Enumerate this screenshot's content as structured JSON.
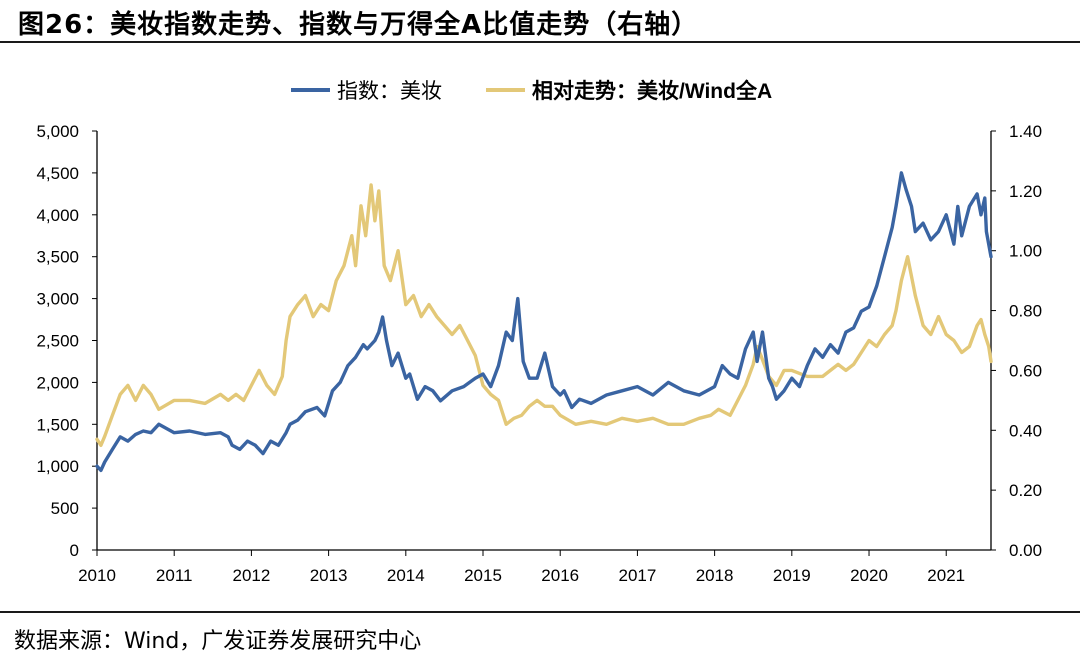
{
  "figure": {
    "title": "图26：美妆指数走势、指数与万得全A比值走势（右轴）",
    "source": "数据来源：Wind，广发证券发展研究中心"
  },
  "colors": {
    "index": "#3A64A2",
    "relative": "#E3C878",
    "axis": "#000000"
  },
  "chart_data": {
    "type": "line",
    "title": "",
    "legend_position": "top",
    "x_range": [
      2010.0,
      2021.58
    ],
    "x_ticks": [
      "2010",
      "2011",
      "2012",
      "2013",
      "2014",
      "2015",
      "2016",
      "2017",
      "2018",
      "2019",
      "2020",
      "2021"
    ],
    "y_left": {
      "range": [
        0,
        5000
      ],
      "ticks": [
        "0",
        "500",
        "1,000",
        "1,500",
        "2,000",
        "2,500",
        "3,000",
        "3,500",
        "4,000",
        "4,500",
        "5,000"
      ]
    },
    "y_right": {
      "range": [
        0,
        1.4
      ],
      "ticks": [
        "0.00",
        "0.20",
        "0.40",
        "0.60",
        "0.80",
        "1.00",
        "1.20",
        "1.40"
      ]
    },
    "series": [
      {
        "name": "指数：美妆",
        "axis": "left",
        "x": [
          2010.0,
          2010.05,
          2010.1,
          2010.2,
          2010.3,
          2010.4,
          2010.5,
          2010.6,
          2010.7,
          2010.8,
          2011.0,
          2011.2,
          2011.4,
          2011.6,
          2011.7,
          2011.75,
          2011.85,
          2011.95,
          2012.05,
          2012.15,
          2012.25,
          2012.35,
          2012.45,
          2012.5,
          2012.6,
          2012.7,
          2012.85,
          2012.95,
          2013.05,
          2013.15,
          2013.25,
          2013.35,
          2013.45,
          2013.5,
          2013.6,
          2013.65,
          2013.7,
          2013.75,
          2013.82,
          2013.9,
          2014.0,
          2014.05,
          2014.15,
          2014.25,
          2014.35,
          2014.45,
          2014.6,
          2014.75,
          2014.9,
          2015.0,
          2015.1,
          2015.2,
          2015.3,
          2015.38,
          2015.45,
          2015.52,
          2015.6,
          2015.7,
          2015.8,
          2015.9,
          2016.0,
          2016.05,
          2016.15,
          2016.25,
          2016.4,
          2016.6,
          2016.8,
          2017.0,
          2017.2,
          2017.4,
          2017.6,
          2017.8,
          2018.0,
          2018.1,
          2018.2,
          2018.3,
          2018.4,
          2018.5,
          2018.55,
          2018.62,
          2018.7,
          2018.75,
          2018.8,
          2018.9,
          2019.0,
          2019.1,
          2019.2,
          2019.3,
          2019.4,
          2019.5,
          2019.6,
          2019.7,
          2019.8,
          2019.9,
          2020.0,
          2020.1,
          2020.2,
          2020.3,
          2020.35,
          2020.42,
          2020.48,
          2020.55,
          2020.6,
          2020.7,
          2020.8,
          2020.9,
          2021.0,
          2021.1,
          2021.15,
          2021.2,
          2021.3,
          2021.4,
          2021.45,
          2021.5,
          2021.52,
          2021.58
        ],
        "y": [
          1000,
          950,
          1050,
          1200,
          1350,
          1300,
          1380,
          1420,
          1400,
          1500,
          1400,
          1420,
          1380,
          1400,
          1350,
          1250,
          1200,
          1300,
          1250,
          1150,
          1300,
          1250,
          1400,
          1500,
          1550,
          1650,
          1700,
          1600,
          1900,
          2000,
          2200,
          2300,
          2450,
          2400,
          2500,
          2600,
          2780,
          2500,
          2200,
          2350,
          2050,
          2100,
          1800,
          1950,
          1900,
          1780,
          1900,
          1950,
          2050,
          2100,
          1950,
          2200,
          2600,
          2500,
          3000,
          2250,
          2050,
          2050,
          2350,
          1950,
          1850,
          1900,
          1700,
          1800,
          1750,
          1850,
          1900,
          1950,
          1850,
          2000,
          1900,
          1850,
          1950,
          2200,
          2100,
          2050,
          2400,
          2600,
          2250,
          2600,
          2050,
          1950,
          1800,
          1900,
          2050,
          1950,
          2200,
          2400,
          2300,
          2450,
          2350,
          2600,
          2650,
          2850,
          2900,
          3150,
          3500,
          3850,
          4100,
          4500,
          4300,
          4100,
          3800,
          3900,
          3700,
          3800,
          4000,
          3650,
          4100,
          3750,
          4100,
          4250,
          4000,
          4200,
          3800,
          3500
        ]
      },
      {
        "name": "相对走势：美妆/Wind全A",
        "axis": "right",
        "x": [
          2010.0,
          2010.05,
          2010.1,
          2010.2,
          2010.3,
          2010.4,
          2010.5,
          2010.6,
          2010.7,
          2010.8,
          2011.0,
          2011.2,
          2011.4,
          2011.6,
          2011.7,
          2011.8,
          2011.9,
          2012.0,
          2012.1,
          2012.2,
          2012.3,
          2012.4,
          2012.45,
          2012.5,
          2012.6,
          2012.7,
          2012.8,
          2012.9,
          2013.0,
          2013.1,
          2013.2,
          2013.3,
          2013.35,
          2013.42,
          2013.48,
          2013.55,
          2013.6,
          2013.65,
          2013.72,
          2013.8,
          2013.9,
          2014.0,
          2014.1,
          2014.2,
          2014.3,
          2014.4,
          2014.5,
          2014.6,
          2014.7,
          2014.8,
          2014.9,
          2015.0,
          2015.1,
          2015.2,
          2015.3,
          2015.4,
          2015.5,
          2015.6,
          2015.7,
          2015.8,
          2015.9,
          2016.0,
          2016.2,
          2016.4,
          2016.6,
          2016.8,
          2017.0,
          2017.2,
          2017.4,
          2017.6,
          2017.8,
          2017.95,
          2018.05,
          2018.2,
          2018.3,
          2018.4,
          2018.5,
          2018.55,
          2018.6,
          2018.7,
          2018.8,
          2018.9,
          2019.0,
          2019.2,
          2019.4,
          2019.6,
          2019.7,
          2019.8,
          2019.9,
          2020.0,
          2020.1,
          2020.2,
          2020.3,
          2020.35,
          2020.42,
          2020.5,
          2020.6,
          2020.7,
          2020.8,
          2020.9,
          2021.0,
          2021.1,
          2021.2,
          2021.3,
          2021.4,
          2021.45,
          2021.5,
          2021.55,
          2021.58
        ],
        "y": [
          0.37,
          0.35,
          0.38,
          0.45,
          0.52,
          0.55,
          0.5,
          0.55,
          0.52,
          0.47,
          0.5,
          0.5,
          0.49,
          0.52,
          0.5,
          0.52,
          0.5,
          0.55,
          0.6,
          0.55,
          0.52,
          0.58,
          0.7,
          0.78,
          0.82,
          0.85,
          0.78,
          0.82,
          0.8,
          0.9,
          0.95,
          1.05,
          0.95,
          1.15,
          1.05,
          1.22,
          1.1,
          1.2,
          0.95,
          0.9,
          1.0,
          0.82,
          0.85,
          0.78,
          0.82,
          0.78,
          0.75,
          0.72,
          0.75,
          0.7,
          0.65,
          0.55,
          0.52,
          0.5,
          0.42,
          0.44,
          0.45,
          0.48,
          0.5,
          0.48,
          0.48,
          0.45,
          0.42,
          0.43,
          0.42,
          0.44,
          0.43,
          0.44,
          0.42,
          0.42,
          0.44,
          0.45,
          0.47,
          0.45,
          0.5,
          0.55,
          0.62,
          0.68,
          0.65,
          0.58,
          0.55,
          0.6,
          0.6,
          0.58,
          0.58,
          0.62,
          0.6,
          0.62,
          0.66,
          0.7,
          0.68,
          0.72,
          0.75,
          0.8,
          0.9,
          0.98,
          0.85,
          0.75,
          0.72,
          0.78,
          0.72,
          0.7,
          0.66,
          0.68,
          0.75,
          0.77,
          0.72,
          0.68,
          0.63
        ]
      }
    ]
  }
}
